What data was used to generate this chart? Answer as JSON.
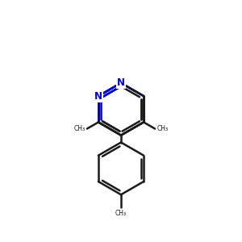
{
  "bg_color": "#ffffff",
  "bond_color": "#1a1a1a",
  "N_color": "#0000cc",
  "lw": 1.8,
  "dbo": 0.12,
  "figsize": [
    3.0,
    3.0
  ],
  "dpi": 100,
  "xlim": [
    0.0,
    10.0
  ],
  "ylim": [
    0.3,
    10.3
  ]
}
